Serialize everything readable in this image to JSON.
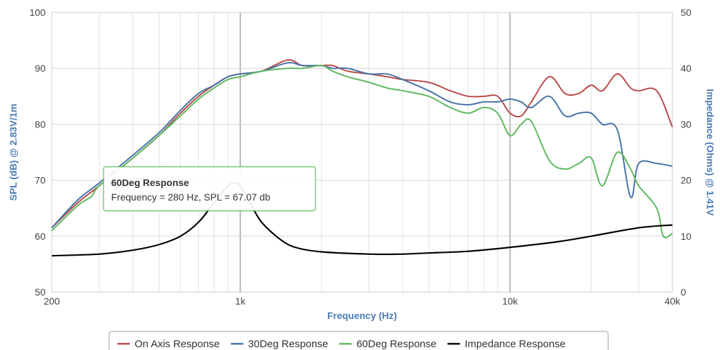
{
  "chart_data": {
    "type": "line",
    "xlabel": "Frequency (Hz)",
    "ylabel_left": "SPL (dB) @ 2.83V/1m",
    "ylabel_right": "Impedance (Ohms) @ 1.41V",
    "x_scale": "log",
    "xlim": [
      200,
      40000
    ],
    "ylim_left": [
      50,
      100
    ],
    "ylim_right": [
      0,
      50
    ],
    "x_ticks": [
      {
        "value": 200,
        "label": "200"
      },
      {
        "value": 1000,
        "label": "1k"
      },
      {
        "value": 10000,
        "label": "10k"
      },
      {
        "value": 40000,
        "label": "40k"
      }
    ],
    "y_ticks_left": [
      50,
      60,
      70,
      80,
      90,
      100
    ],
    "y_ticks_right": [
      0,
      10,
      20,
      30,
      40,
      50
    ],
    "grid": true,
    "legend_position": "bottom",
    "series": [
      {
        "name": "On Axis Response",
        "color": "#b94a48",
        "axis": "left",
        "x": [
          200,
          250,
          300,
          400,
          500,
          600,
          700,
          800,
          900,
          1000,
          1200,
          1500,
          1700,
          2000,
          2200,
          2500,
          3000,
          3500,
          4000,
          5000,
          6000,
          7000,
          8000,
          9000,
          10000,
          11000,
          12000,
          14000,
          16000,
          18000,
          20000,
          22000,
          25000,
          28000,
          30000,
          35000,
          40000
        ],
        "y": [
          61.5,
          66,
          69,
          74,
          78,
          82,
          85,
          87,
          88.5,
          89,
          89.5,
          91.5,
          90.5,
          90.5,
          90.5,
          89.5,
          89,
          88.5,
          88,
          87.5,
          86,
          85,
          85,
          85,
          82,
          81.5,
          84,
          88.5,
          85.5,
          85.5,
          87,
          86,
          89,
          86.5,
          86,
          86,
          79.5
        ]
      },
      {
        "name": "30Deg Response",
        "color": "#4572a7",
        "axis": "left",
        "x": [
          200,
          250,
          300,
          400,
          500,
          600,
          700,
          800,
          900,
          1000,
          1200,
          1500,
          1700,
          2000,
          2200,
          2500,
          3000,
          3500,
          4000,
          5000,
          6000,
          7000,
          8000,
          9000,
          10000,
          11000,
          12000,
          14000,
          16000,
          18000,
          20000,
          22000,
          25000,
          28000,
          30000,
          35000,
          40000
        ],
        "y": [
          61.5,
          66.5,
          69.5,
          74.5,
          78.5,
          82.5,
          85.5,
          87,
          88.5,
          89,
          89.5,
          91,
          90.5,
          90.5,
          90,
          90,
          89,
          89,
          88,
          86,
          84,
          83.5,
          84,
          84,
          84.5,
          84,
          83,
          85,
          81.5,
          82,
          82,
          80,
          79,
          67,
          73,
          73,
          72.5
        ]
      },
      {
        "name": "60Deg Response",
        "color": "#5cb85c",
        "axis": "left",
        "x": [
          200,
          250,
          280,
          300,
          400,
          500,
          600,
          700,
          800,
          900,
          1000,
          1200,
          1500,
          1700,
          2000,
          2200,
          2500,
          3000,
          3500,
          4000,
          5000,
          6000,
          7000,
          8000,
          9000,
          10000,
          11000,
          12000,
          14000,
          16000,
          18000,
          20000,
          22000,
          25000,
          28000,
          30000,
          35000,
          37000,
          40000
        ],
        "y": [
          61,
          65.5,
          67.07,
          69,
          74,
          78,
          81.5,
          84.5,
          86.5,
          88,
          88.5,
          89.5,
          90,
          90,
          90.5,
          89.5,
          88.5,
          87.5,
          86.5,
          86,
          85,
          83,
          82,
          83,
          82,
          78,
          80,
          80.5,
          73.5,
          72,
          73,
          74,
          69,
          75,
          72,
          69,
          65,
          60,
          60.5
        ]
      },
      {
        "name": "Impedance Response",
        "color": "#000000",
        "axis": "right",
        "x": [
          200,
          300,
          400,
          500,
          600,
          700,
          800,
          900,
          950,
          1000,
          1100,
          1200,
          1400,
          1600,
          2000,
          3000,
          4000,
          5000,
          7000,
          10000,
          15000,
          20000,
          30000,
          40000
        ],
        "y": [
          6.5,
          6.8,
          7.5,
          8.5,
          10,
          12.5,
          16,
          19,
          19.5,
          19,
          15.5,
          12.5,
          9.5,
          8,
          7.2,
          6.8,
          6.8,
          7,
          7.3,
          8,
          9,
          10,
          11.5,
          12
        ]
      }
    ],
    "tooltip": {
      "title": "60Deg Response",
      "body": "Frequency = 280 Hz, SPL = 67.07 db",
      "anchor_series": "60Deg Response",
      "anchor_x": 280,
      "anchor_y": 67.07
    }
  }
}
